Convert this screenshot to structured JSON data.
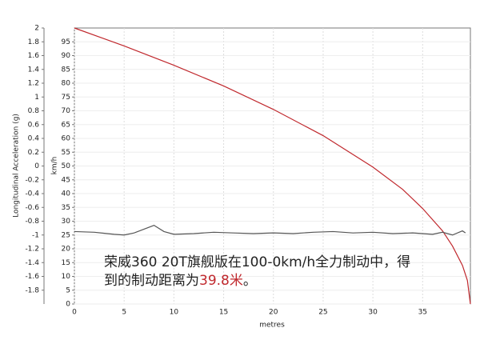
{
  "chart_data": {
    "type": "line",
    "xlabel": "metres",
    "ylabel": "Longitudinal Acceleration (g)",
    "y2label": "km/h",
    "xlim": [
      0,
      39.8
    ],
    "xticks": [
      0,
      5,
      10,
      15,
      20,
      25,
      30,
      35
    ],
    "ylim": [
      -2,
      2
    ],
    "yticks": [
      -1.8,
      -1.6,
      -1.4,
      -1.2,
      -1,
      -0.8,
      -0.6,
      -0.4,
      -0.2,
      0,
      0.2,
      0.4,
      0.6,
      0.8,
      1,
      1.2,
      1.4,
      1.6,
      1.8,
      2
    ],
    "y2lim": [
      0,
      100
    ],
    "y2ticks": [
      0,
      5,
      10,
      15,
      20,
      25,
      30,
      35,
      40,
      45,
      50,
      55,
      60,
      65,
      70,
      75,
      80,
      85,
      90,
      95
    ],
    "y2color": "#c0282d",
    "grid": true,
    "series": [
      {
        "color": "#c0282d",
        "axis": "y2",
        "x": [
          0,
          5,
          10,
          15,
          20,
          25,
          30,
          33,
          35,
          37,
          38,
          39,
          39.5,
          39.8
        ],
        "values": [
          100,
          93.5,
          86.5,
          79,
          70.5,
          61,
          49.6,
          41.5,
          34.6,
          26.5,
          21,
          14,
          8.5,
          0
        ]
      },
      {
        "color": "#555555",
        "x": [
          0,
          2,
          4,
          5,
          6,
          8,
          9,
          10,
          12,
          14,
          16,
          18,
          20,
          22,
          24,
          26,
          28,
          30,
          32,
          34,
          36,
          37,
          38,
          39,
          39.3
        ],
        "values": [
          -0.95,
          -0.96,
          -0.99,
          -1.0,
          -0.97,
          -0.86,
          -0.95,
          -0.99,
          -0.98,
          -0.96,
          -0.97,
          -0.98,
          -0.97,
          -0.98,
          -0.96,
          -0.95,
          -0.97,
          -0.96,
          -0.98,
          -0.97,
          -0.99,
          -0.96,
          -1.0,
          -0.94,
          -0.97
        ]
      }
    ],
    "annotation": {
      "line1": "荣威360 20T旗舰版在100-0km/h全力制动中，得",
      "line2": "到的制动距离为",
      "highlight": "39.8米",
      "tail": "。"
    }
  }
}
